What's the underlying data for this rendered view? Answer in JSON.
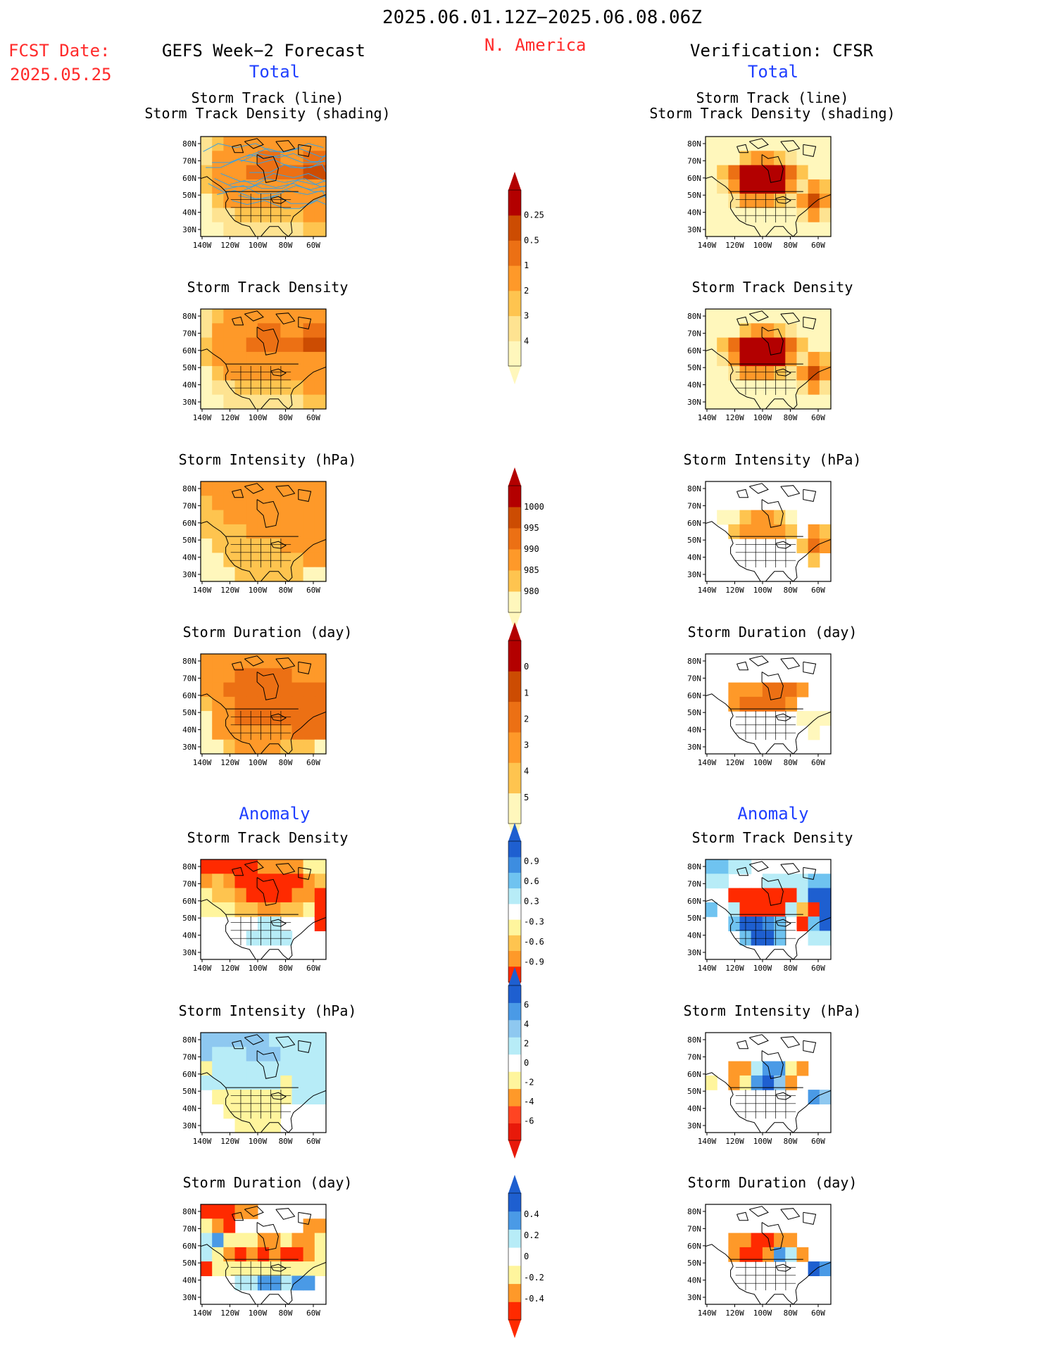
{
  "header": {
    "period": "2025.06.01.12Z−2025.06.08.06Z",
    "fcst_label": "FCST Date:",
    "fcst_date": "2025.05.25",
    "left_title": "GEFS Week−2 Forecast",
    "region": "N. America",
    "right_title": "Verification: CFSR",
    "total_left": "Total",
    "total_right": "Total",
    "anomaly_left": "Anomaly",
    "anomaly_right": "Anomaly"
  },
  "colors": {
    "title": "#000000",
    "red_text": "#ff2a2a",
    "blue_text": "#1f3fff",
    "track_line": "#3aa0e0"
  },
  "titles": {
    "track_line": "Storm Track (line)",
    "track_shading": "Storm Track Density (shading)",
    "track_density": "Storm Track Density",
    "intensity": "Storm Intensity (hPa)",
    "duration": "Storm Duration (day)"
  },
  "map_axes": {
    "lat_labels": [
      "80N",
      "70N",
      "60N",
      "50N",
      "40N",
      "30N"
    ],
    "lon_labels": [
      "140W",
      "120W",
      "100W",
      "80W",
      "60W"
    ]
  },
  "chart_data": [
    {
      "type": "heatmap",
      "title": "Storm Track Density",
      "colorbar_id": "density",
      "levels": [
        0.25,
        0.5,
        1,
        2,
        3,
        4
      ],
      "colors": [
        "#fff7bc",
        "#fee391",
        "#fec44f",
        "#fe9929",
        "#ec7014",
        "#cc4c02",
        "#b30000"
      ],
      "forecast_cells": "1,2,3,3,3,3,3,3,3,3,3;1,3,3,3,3,4,4,3,3,4,4;2,3,3,3,4,4,4,4,4,5,5;2,3,3,3,3,3,3,3,3,3,3;0,2,3,3,3,3,3,3,3,3,3;0,1,1,2,2,2,2,2,2,3,3;0,0,1,1,1,1,1,1,1,2,2",
      "verification_cells": "0,0,0,0,0,0,0,0,0,0,0;0,0,0,2,3,3,2,1,0,0,0;0,2,4,6,6,6,6,4,2,0,0;0,1,3,6,6,6,6,3,1,3,2;0,0,1,3,3,3,2,1,3,5,3;0,0,0,0,0,0,0,0,1,3,1;0,0,0,0,0,0,0,0,0,0,0"
    },
    {
      "type": "heatmap",
      "title": "Storm Intensity (hPa)",
      "colorbar_id": "intensity",
      "levels": [
        1000,
        995,
        990,
        985,
        980
      ],
      "colors": [
        "#fff7bc",
        "#fec44f",
        "#fe9929",
        "#ec7014",
        "#cc4c02",
        "#b30000"
      ],
      "forecast_cells": "2,2,2,2,2,2,2,2,2,2,2;1,2,2,2,2,2,2,2,2,2,2;1,1,2,2,2,2,2,2,2,2,2;1,1,1,1,2,2,2,2,2,2,2;0,1,1,1,1,1,1,2,2,2,2;0,0,1,1,1,1,1,1,1,2,2;0,0,0,1,1,1,1,1,1,0,0",
      "verification_cells": "-1,-1,-1,-1,-1,-1,-1,-1,-1,-1,-1;-1,-1,-1,-1,-1,-1,-1,-1,-1,-1,-1;-1,0,0,1,2,2,1,0,-1,-1,-1;-1,-1,1,2,2,2,2,1,-1,2,1;-1,-1,-1,-1,-1,-1,-1,-1,1,3,2;-1,-1,-1,-1,-1,-1,-1,-1,-1,1,-1;-1,-1,-1,-1,-1,-1,-1,-1,-1,-1,-1"
    },
    {
      "type": "heatmap",
      "title": "Storm Duration (day)",
      "colorbar_id": "duration",
      "levels": [
        0,
        1,
        2,
        3,
        4,
        5
      ],
      "colors": [
        "#fff7bc",
        "#fec44f",
        "#fe9929",
        "#ec7014",
        "#cc4c02",
        "#b30000"
      ],
      "forecast_cells": "2,2,2,2,2,2,2,2,2,2,2;2,2,2,3,3,3,3,3,2,2,2;2,2,3,3,3,3,3,3,3,3,3;1,2,2,3,3,3,3,3,3,3,3;0,2,2,3,3,3,3,3,3,3,3;0,2,2,2,2,2,2,2,3,3,3;0,0,1,2,2,2,2,1,1,1,0",
      "verification_cells": "-1,-1,-1,-1,-1,-1,-1,-1,-1,-1,-1;-1,-1,-1,-1,-1,-1,-1,-1,-1,-1,-1;-1,-1,2,2,2,3,3,3,2,-1,-1;-1,-1,2,3,3,3,3,2,-1,-1,-1;-1,-1,-1,-1,-1,-1,-1,-1,0,0,0;-1,-1,-1,-1,-1,-1,-1,-1,-1,0,-1;-1,-1,-1,-1,-1,-1,-1,-1,-1,-1,-1"
    },
    {
      "type": "heatmap",
      "title": "Storm Track Density",
      "colorbar_id": "density_anom",
      "levels": [
        0.9,
        0.6,
        0.3,
        -0.3,
        -0.6,
        -0.9
      ],
      "colors": [
        "#ff2a00",
        "#fe9929",
        "#fec44f",
        "#fff59d",
        "#ffffff",
        "#b7ecf7",
        "#6fc3f0",
        "#3d8de0",
        "#1e5fd0"
      ],
      "forecast_cells": "0,0,0,0,0,1,1,1,1,3,3;1,2,1,0,0,0,0,0,0,1,2;3,2,2,1,0,0,0,0,1,1,0;3,3,3,2,2,1,1,2,2,3,0;4,4,4,4,4,5,5,4,4,4,0;4,4,4,4,5,5,5,5,4,4,4;4,4,4,4,4,4,4,4,4,4,4",
      "verification_cells": "6,6,5,5,4,4,4,4,4,4,4;5,5,4,4,4,5,5,5,5,6,6;4,4,0,0,0,0,0,0,5,8,8;6,4,5,0,0,0,0,5,2,0,8;4,4,6,8,8,7,6,4,0,6,8;4,4,4,6,8,8,6,4,4,5,5;4,4,4,4,4,4,4,4,4,4,4"
    },
    {
      "type": "heatmap",
      "title": "Storm Intensity (hPa)",
      "colorbar_id": "intensity_anom",
      "levels": [
        6,
        4,
        2,
        0,
        -2,
        -4,
        -6
      ],
      "colors": [
        "#e8190a",
        "#ff4422",
        "#fe9929",
        "#fff59d",
        "#ffffff",
        "#b7ecf7",
        "#8ec8f0",
        "#4a9ae6",
        "#1e5fd0"
      ],
      "forecast_cells": "6,6,6,6,6,6,5,5,5,5,5;6,5,5,5,6,6,6,5,5,5,5;3,5,5,5,5,5,5,5,5,5,5;5,5,5,5,5,5,5,3,5,5,5;4,3,3,3,3,3,3,3,5,5,5;4,4,3,3,3,3,3,4,4,4,4;4,4,4,3,3,3,3,4,4,4,4",
      "verification_cells": "4,4,4,4,4,4,4,4,4,4,4;4,4,4,4,4,4,4,4,4,4,4;4,4,2,2,5,7,7,3,2,4,4;3,4,2,3,7,8,6,2,4,4,4;4,4,4,4,4,4,4,4,4,7,6;4,4,4,4,4,4,4,4,4,4,4;4,4,4,4,4,4,4,4,4,4,4"
    },
    {
      "type": "heatmap",
      "title": "Storm Duration (day)",
      "colorbar_id": "duration_anom",
      "levels": [
        0.4,
        0.2,
        0,
        -0.2,
        -0.4
      ],
      "colors": [
        "#ff2a00",
        "#fe9929",
        "#fff59d",
        "#ffffff",
        "#b7ecf7",
        "#4a9ae6",
        "#1e5fd0"
      ],
      "forecast_cells": "0,0,0,1,1,3,3,3,3,3,3;2,1,0,3,3,3,3,3,3,1,1;4,5,2,2,2,1,1,2,1,1,2;4,2,1,0,1,0,1,0,0,1,2;0,2,2,2,2,2,2,2,2,2,2;3,3,3,4,4,5,5,4,5,5,3;3,3,3,3,3,3,3,3,3,3,3",
      "verification_cells": "3,3,3,3,3,3,3,3,3,3,3;3,3,3,3,3,3,3,3,3,3,3;3,3,1,1,0,0,1,1,3,3,3;3,3,1,0,0,1,5,4,1,3,3;3,3,3,3,3,3,3,3,3,6,5;3,3,3,3,3,3,3,3,3,3,3;3,3,3,3,3,3,3,3,3,3,3"
    }
  ]
}
